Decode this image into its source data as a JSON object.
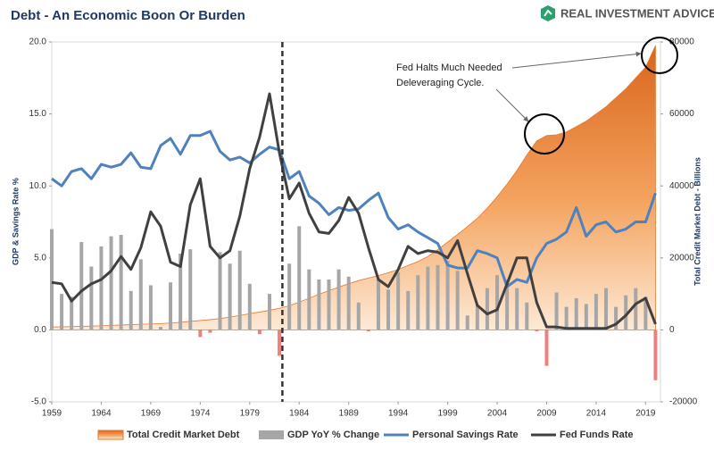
{
  "chart_data": {
    "type": "combo",
    "title": "Debt - An Economic Boon Or Burden",
    "brand": "REAL INVESTMENT ADVICE",
    "y_label": "GDP & Savings Rate %",
    "y2_label": "Total Credit Market Debt - Billions",
    "annotation": [
      "Fed Halts Much Needed",
      "Deleveraging Cycle."
    ],
    "vertical_line": {
      "x": 1982.3,
      "color": "#333333"
    },
    "x": [
      1959,
      1960,
      1961,
      1962,
      1963,
      1964,
      1965,
      1966,
      1967,
      1968,
      1969,
      1970,
      1971,
      1972,
      1973,
      1974,
      1975,
      1976,
      1977,
      1978,
      1979,
      1980,
      1981,
      1982,
      1983,
      1984,
      1985,
      1986,
      1987,
      1988,
      1989,
      1990,
      1991,
      1992,
      1993,
      1994,
      1995,
      1996,
      1997,
      1998,
      1999,
      2000,
      2001,
      2002,
      2003,
      2004,
      2005,
      2006,
      2007,
      2008,
      2009,
      2010,
      2011,
      2012,
      2013,
      2014,
      2015,
      2016,
      2017,
      2018,
      2019,
      2020
    ],
    "xlim": [
      1959,
      2020.5
    ],
    "xticks": [
      1959,
      1964,
      1969,
      1974,
      1979,
      1984,
      1989,
      1994,
      1999,
      2004,
      2009,
      2014,
      2019
    ],
    "ylim": [
      -5,
      20
    ],
    "yticks": [
      {
        "value": -5,
        "label": "-5.0"
      },
      {
        "value": 0,
        "label": "0.0"
      },
      {
        "value": 5,
        "label": "5.0"
      },
      {
        "value": 10,
        "label": "10.0"
      },
      {
        "value": 15,
        "label": "15.0"
      },
      {
        "value": 20,
        "label": "20.0"
      }
    ],
    "y2lim": [
      -20000,
      80000
    ],
    "y2ticks": [
      -20000,
      0,
      20000,
      40000,
      60000,
      80000
    ],
    "series": [
      {
        "name": "Total Credit Market Debt",
        "kind": "area",
        "axis": "y2",
        "color": "#e8772e",
        "values": [
          800,
          850,
          900,
          1000,
          1050,
          1150,
          1250,
          1350,
          1450,
          1550,
          1650,
          1750,
          1900,
          2100,
          2350,
          2600,
          2850,
          3150,
          3550,
          4000,
          4500,
          4950,
          5450,
          6000,
          6700,
          7700,
          8800,
          9900,
          10900,
          11900,
          12800,
          13700,
          14400,
          15100,
          15900,
          16800,
          17900,
          19000,
          20400,
          22300,
          24400,
          26500,
          28700,
          31000,
          33800,
          37000,
          40500,
          44300,
          48600,
          52500,
          54000,
          54200,
          55000,
          56500,
          58000,
          60000,
          62000,
          64500,
          67000,
          70000,
          73000,
          79000
        ]
      },
      {
        "name": "GDP YoY % Change",
        "kind": "bar",
        "color": "#a6a6a6",
        "negative_color": "#f08080",
        "values": [
          7,
          2.5,
          2.3,
          6.1,
          4.4,
          5.8,
          6.5,
          6.6,
          2.7,
          4.9,
          3.1,
          0.2,
          3.3,
          5.3,
          5.6,
          -0.5,
          -0.2,
          5.4,
          4.6,
          5.5,
          3.2,
          -0.3,
          2.5,
          -1.8,
          4.6,
          7.2,
          4.2,
          3.5,
          3.5,
          4.2,
          3.7,
          1.9,
          -0.1,
          3.5,
          2.8,
          4.0,
          2.7,
          3.8,
          4.4,
          4.5,
          4.8,
          4.1,
          1.0,
          1.7,
          2.9,
          3.8,
          3.5,
          2.9,
          1.9,
          -0.1,
          -2.5,
          2.6,
          1.6,
          2.2,
          1.8,
          2.5,
          2.9,
          1.6,
          2.4,
          2.9,
          2.3,
          -3.5
        ]
      },
      {
        "name": "Personal Savings Rate",
        "kind": "line",
        "color": "#4f81bd",
        "values": [
          10.5,
          10,
          11,
          11.2,
          10.5,
          11.5,
          11.3,
          11.5,
          12.3,
          11.3,
          11.2,
          12.8,
          13.3,
          12.2,
          13.5,
          13.5,
          13.8,
          12.4,
          11.8,
          12,
          11.6,
          12.2,
          12.7,
          12.5,
          10.5,
          11,
          9.3,
          8.8,
          8.0,
          8.5,
          8.3,
          8.4,
          9,
          9.5,
          7.8,
          7,
          7.3,
          6.8,
          6.4,
          6.0,
          4.5,
          4.3,
          4.3,
          5.5,
          5.3,
          5.0,
          3.0,
          3.5,
          3.3,
          5.0,
          6.0,
          6.3,
          6.8,
          8.5,
          6.5,
          7.3,
          7.5,
          6.8,
          7.0,
          7.5,
          7.5,
          9.5
        ]
      },
      {
        "name": "Fed Funds Rate",
        "kind": "line",
        "color": "#404040",
        "values": [
          3.3,
          3.2,
          2.0,
          2.7,
          3.2,
          3.5,
          4.1,
          5.1,
          4.2,
          5.7,
          8.2,
          7.2,
          4.7,
          4.4,
          8.7,
          10.5,
          5.8,
          5.0,
          5.5,
          7.9,
          11.2,
          13.4,
          16.4,
          12.3,
          9.1,
          10.2,
          8.1,
          6.8,
          6.7,
          7.6,
          9.2,
          8.1,
          5.7,
          3.5,
          3.0,
          4.2,
          5.8,
          5.3,
          5.5,
          5.4,
          5.0,
          6.2,
          3.9,
          1.7,
          1.1,
          1.4,
          3.2,
          5.0,
          5.0,
          1.9,
          0.2,
          0.2,
          0.1,
          0.1,
          0.1,
          0.1,
          0.1,
          0.4,
          1.0,
          1.8,
          2.2,
          0.4
        ]
      }
    ]
  }
}
